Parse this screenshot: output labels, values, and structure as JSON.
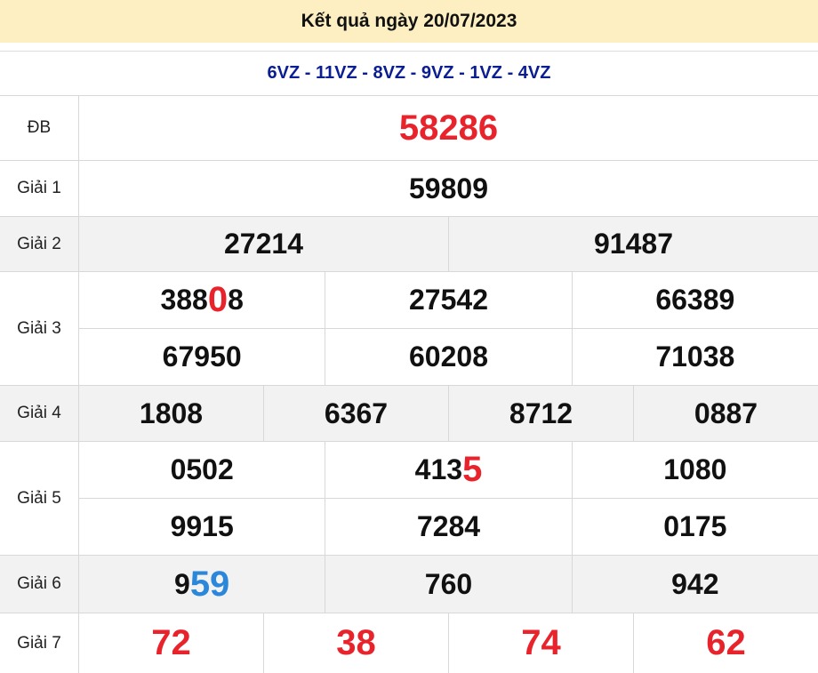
{
  "title": "Kết quả ngày 20/07/2023",
  "codes": "6VZ - 11VZ - 8VZ - 9VZ - 1VZ - 4VZ",
  "colors": {
    "header_bg": "#fdefc1",
    "codes": "#0a1d91",
    "red": "#e8232b",
    "blue": "#2b87da",
    "gray_row": "#f2f2f2"
  },
  "prizes": {
    "db": {
      "label": "ĐB",
      "value": "58286"
    },
    "g1": {
      "label": "Giải 1",
      "value": "59809"
    },
    "g2": {
      "label": "Giải 2",
      "values": [
        "27214",
        "91487"
      ]
    },
    "g3": {
      "label": "Giải 3",
      "values": [
        {
          "pre": "388",
          "hl": "0",
          "post": "8"
        },
        "27542",
        "66389",
        "67950",
        "60208",
        "71038"
      ]
    },
    "g4": {
      "label": "Giải 4",
      "values": [
        "1808",
        "6367",
        "8712",
        "0887"
      ]
    },
    "g5": {
      "label": "Giải 5",
      "values": [
        "0502",
        {
          "pre": "413",
          "hl": "5",
          "post": ""
        },
        "1080",
        "9915",
        "7284",
        "0175"
      ]
    },
    "g6": {
      "label": "Giải 6",
      "values": [
        {
          "pre": "9",
          "hl": "59",
          "post": ""
        },
        "760",
        "942"
      ]
    },
    "g7": {
      "label": "Giải 7",
      "values": [
        "72",
        "38",
        "74",
        "62"
      ]
    }
  }
}
